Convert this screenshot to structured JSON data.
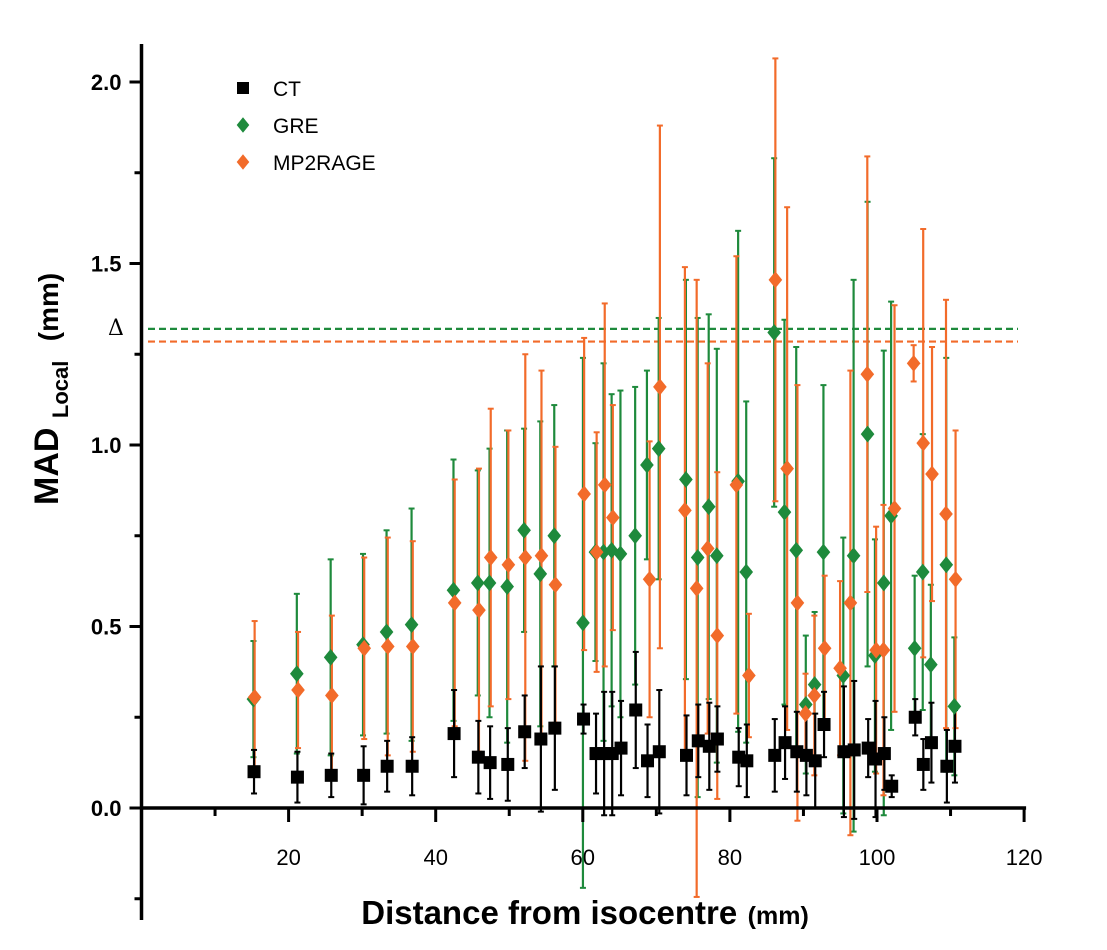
{
  "chart_data": {
    "type": "scatter",
    "xlabel_main": "Distance from isocentre",
    "xlabel_unit": "(mm)",
    "ylabel_main": "MAD",
    "ylabel_sub": "Local",
    "ylabel_unit": "(mm)",
    "xlim": [
      0,
      120
    ],
    "ylim": [
      -0.3,
      2.1
    ],
    "xticks": [
      20,
      40,
      60,
      80,
      100,
      120
    ],
    "yticks": [
      0.0,
      0.5,
      1.0,
      1.5,
      2.0
    ],
    "ytick_labels": [
      "0.0",
      "0.5",
      "1.0",
      "1.5",
      "2.0"
    ],
    "xtick_labels": [
      "20",
      "40",
      "60",
      "80",
      "100",
      "120"
    ],
    "legend_position": "top-left",
    "threshold_label": "Δ",
    "thresholds": [
      {
        "series": "GRE",
        "value": 1.32,
        "color": "#1e8a3c"
      },
      {
        "series": "MP2RAGE",
        "value": 1.285,
        "color": "#f26b2a"
      }
    ],
    "series": [
      {
        "name": "CT",
        "marker": "square",
        "color": "#000000",
        "points": [
          [
            15.3,
            0.1,
            0.06
          ],
          [
            21.2,
            0.085,
            0.07
          ],
          [
            25.8,
            0.09,
            0.06
          ],
          [
            30.2,
            0.09,
            0.08
          ],
          [
            33.4,
            0.115,
            0.07
          ],
          [
            36.8,
            0.115,
            0.08
          ],
          [
            42.5,
            0.205,
            0.12
          ],
          [
            45.8,
            0.14,
            0.1
          ],
          [
            47.4,
            0.125,
            0.1
          ],
          [
            49.8,
            0.12,
            0.1
          ],
          [
            52.1,
            0.21,
            0.1
          ],
          [
            54.3,
            0.19,
            0.2
          ],
          [
            56.2,
            0.22,
            0.17
          ],
          [
            60.1,
            0.245,
            0.04
          ],
          [
            61.8,
            0.15,
            0.11
          ],
          [
            62.9,
            0.15,
            0.17
          ],
          [
            64.0,
            0.15,
            0.17
          ],
          [
            65.2,
            0.165,
            0.13
          ],
          [
            67.2,
            0.27,
            0.16
          ],
          [
            68.8,
            0.13,
            0.1
          ],
          [
            70.4,
            0.155,
            0.17
          ],
          [
            74.1,
            0.145,
            0.11
          ],
          [
            75.7,
            0.185,
            0.1
          ],
          [
            77.2,
            0.17,
            0.12
          ],
          [
            78.3,
            0.19,
            0.09
          ],
          [
            81.2,
            0.14,
            0.08
          ],
          [
            82.3,
            0.13,
            0.1
          ],
          [
            86.1,
            0.145,
            0.1
          ],
          [
            87.5,
            0.18,
            0.1
          ],
          [
            89.1,
            0.155,
            0.11
          ],
          [
            90.4,
            0.145,
            0.11
          ],
          [
            91.6,
            0.13,
            0.13
          ],
          [
            92.8,
            0.23,
            0.09
          ],
          [
            95.5,
            0.155,
            0.18
          ],
          [
            96.9,
            0.16,
            0.19
          ],
          [
            98.8,
            0.165,
            0.08
          ],
          [
            99.8,
            0.135,
            0.16
          ],
          [
            101.0,
            0.15,
            0.1
          ],
          [
            102.0,
            0.06,
            0.03
          ],
          [
            105.2,
            0.25,
            0.05
          ],
          [
            106.3,
            0.12,
            0.07
          ],
          [
            107.4,
            0.18,
            0.11
          ],
          [
            109.5,
            0.115,
            0.1
          ],
          [
            110.6,
            0.17,
            0.1
          ]
        ]
      },
      {
        "name": "GRE",
        "marker": "diamond",
        "color": "#1e8a3c",
        "points": [
          [
            15.3,
            0.3,
            0.16
          ],
          [
            21.2,
            0.37,
            0.22
          ],
          [
            25.8,
            0.415,
            0.27
          ],
          [
            30.2,
            0.45,
            0.25
          ],
          [
            33.4,
            0.485,
            0.28
          ],
          [
            36.8,
            0.505,
            0.32
          ],
          [
            42.5,
            0.6,
            0.36
          ],
          [
            45.8,
            0.62,
            0.31
          ],
          [
            47.4,
            0.62,
            0.37
          ],
          [
            49.8,
            0.61,
            0.43
          ],
          [
            52.1,
            0.765,
            0.28
          ],
          [
            54.3,
            0.645,
            0.42
          ],
          [
            56.2,
            0.75,
            0.36
          ],
          [
            60.1,
            0.51,
            0.73
          ],
          [
            61.8,
            0.705,
            0.3
          ],
          [
            62.9,
            0.705,
            0.52
          ],
          [
            64.0,
            0.71,
            0.43
          ],
          [
            65.2,
            0.7,
            0.45
          ],
          [
            67.2,
            0.75,
            0.41
          ],
          [
            68.8,
            0.945,
            0.26
          ],
          [
            70.4,
            0.99,
            0.36
          ],
          [
            74.1,
            0.905,
            0.55
          ],
          [
            75.7,
            0.69,
            0.66
          ],
          [
            77.2,
            0.83,
            0.53
          ],
          [
            78.3,
            0.695,
            0.57
          ],
          [
            81.2,
            0.9,
            0.69
          ],
          [
            82.3,
            0.65,
            0.47
          ],
          [
            86.1,
            1.31,
            0.48
          ],
          [
            87.5,
            0.815,
            0.53
          ],
          [
            89.1,
            0.71,
            0.56
          ],
          [
            90.4,
            0.285,
            0.19
          ],
          [
            91.6,
            0.34,
            0.2
          ],
          [
            92.8,
            0.705,
            0.46
          ],
          [
            95.5,
            0.365,
            0.38
          ],
          [
            96.9,
            0.695,
            0.76
          ],
          [
            98.8,
            1.03,
            0.64
          ],
          [
            99.8,
            0.42,
            0.32
          ],
          [
            101.0,
            0.62,
            0.64
          ],
          [
            102.0,
            0.805,
            0.59
          ],
          [
            105.2,
            0.44,
            0.2
          ],
          [
            106.3,
            0.65,
            0.38
          ],
          [
            107.4,
            0.395,
            0.22
          ],
          [
            109.5,
            0.67,
            0.57
          ],
          [
            110.6,
            0.28,
            0.19
          ]
        ]
      },
      {
        "name": "MP2RAGE",
        "marker": "diamond",
        "color": "#f26b2a",
        "points": [
          [
            15.3,
            0.305,
            0.21
          ],
          [
            21.2,
            0.325,
            0.16
          ],
          [
            25.8,
            0.31,
            0.22
          ],
          [
            30.2,
            0.44,
            0.25
          ],
          [
            33.4,
            0.445,
            0.3
          ],
          [
            36.8,
            0.445,
            0.29
          ],
          [
            42.5,
            0.565,
            0.34
          ],
          [
            45.8,
            0.545,
            0.39
          ],
          [
            47.4,
            0.69,
            0.41
          ],
          [
            49.8,
            0.67,
            0.37
          ],
          [
            52.1,
            0.69,
            0.56
          ],
          [
            54.3,
            0.695,
            0.51
          ],
          [
            56.2,
            0.615,
            0.38
          ],
          [
            60.1,
            0.865,
            0.43
          ],
          [
            61.8,
            0.705,
            0.33
          ],
          [
            62.9,
            0.89,
            0.5
          ],
          [
            64.0,
            0.8,
            0.31
          ],
          [
            69.0,
            0.63,
            0.38
          ],
          [
            70.4,
            1.16,
            0.72
          ],
          [
            73.8,
            0.82,
            0.67
          ],
          [
            75.4,
            0.605,
            0.85
          ],
          [
            76.9,
            0.715,
            0.51
          ],
          [
            78.2,
            0.475,
            0.45
          ],
          [
            80.8,
            0.89,
            0.63
          ],
          [
            82.5,
            0.365,
            0.17
          ],
          [
            86.1,
            1.455,
            0.61
          ],
          [
            87.7,
            0.935,
            0.72
          ],
          [
            89.1,
            0.565,
            0.6
          ],
          [
            90.2,
            0.26,
            0.11
          ],
          [
            91.4,
            0.31,
            0.22
          ],
          [
            92.8,
            0.44,
            0.2
          ],
          [
            94.9,
            0.385,
            0.24
          ],
          [
            96.3,
            0.565,
            0.64
          ],
          [
            98.6,
            1.195,
            0.6
          ],
          [
            99.8,
            0.435,
            0.34
          ],
          [
            100.8,
            0.435,
            0.4
          ],
          [
            102.3,
            0.825,
            0.56
          ],
          [
            104.9,
            1.225,
            0.05
          ],
          [
            106.2,
            1.005,
            0.59
          ],
          [
            107.4,
            0.92,
            0.35
          ],
          [
            109.3,
            0.81,
            0.59
          ],
          [
            110.6,
            0.63,
            0.41
          ]
        ]
      }
    ]
  }
}
